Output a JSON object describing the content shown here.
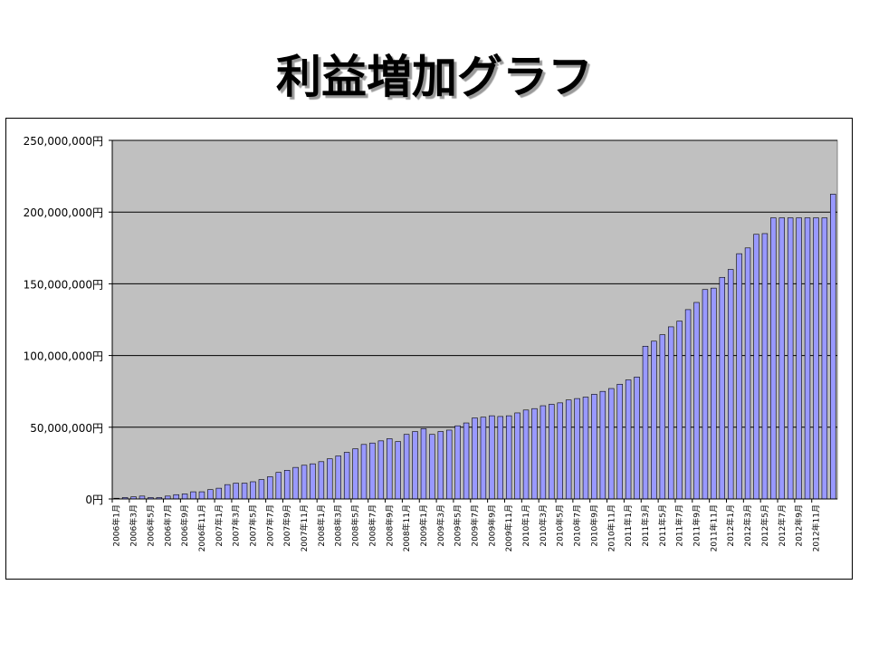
{
  "slide": {
    "title": "利益増加グラフ"
  },
  "colors": {
    "plot_background": "#c0c0c0",
    "bar_fill": "#9999ff",
    "bar_stroke": "#000000",
    "gridline": "#000000"
  },
  "chart_data": {
    "type": "bar",
    "title": "",
    "xlabel": "",
    "ylabel": "",
    "ylim": [
      0,
      250000000
    ],
    "y_ticks": [
      "0円",
      "50,000,000円",
      "100,000,000円",
      "150,000,000円",
      "200,000,000円",
      "250,000,000円"
    ],
    "grid": true,
    "legend": "none",
    "x_tick_labels": [
      "2006年1月",
      "2006年3月",
      "2006年5月",
      "2006年7月",
      "2006年9月",
      "2006年11月",
      "2007年1月",
      "2007年3月",
      "2007年5月",
      "2007年7月",
      "2007年9月",
      "2007年11月",
      "2008年1月",
      "2008年3月",
      "2008年5月",
      "2008年7月",
      "2008年9月",
      "2008年11月",
      "2009年1月",
      "2009年3月",
      "2009年5月",
      "2009年7月",
      "2009年9月",
      "2009年11月",
      "2010年1月",
      "2010年3月",
      "2010年5月",
      "2010年7月",
      "2010年9月",
      "2010年11月",
      "2011年1月",
      "2011年3月",
      "2011年5月",
      "2011年7月",
      "2011年9月",
      "2011年11月",
      "2012年1月",
      "2012年3月",
      "2012年5月",
      "2012年7月",
      "2012年9月",
      "2012年11月"
    ],
    "values": [
      500000,
      1000000,
      1500000,
      2000000,
      1000000,
      1000000,
      2000000,
      3000000,
      3500000,
      5000000,
      5000000,
      6500000,
      7500000,
      10000000,
      11000000,
      11000000,
      12000000,
      13500000,
      15500000,
      18500000,
      20000000,
      22000000,
      23500000,
      24500000,
      26000000,
      28000000,
      30000000,
      32500000,
      35000000,
      38000000,
      39000000,
      40500000,
      42000000,
      40000000,
      45000000,
      47000000,
      49000000,
      45000000,
      47000000,
      48000000,
      51000000,
      53000000,
      56500000,
      57000000,
      58000000,
      57500000,
      58000000,
      60000000,
      62000000,
      63000000,
      65000000,
      66000000,
      67000000,
      69000000,
      70000000,
      71000000,
      73000000,
      75000000,
      77000000,
      80000000,
      83000000,
      85000000,
      106500000,
      110000000,
      114500000,
      120000000,
      124000000,
      132000000,
      137000000,
      146000000,
      147000000,
      154500000,
      160000000,
      171000000,
      175000000,
      184500000,
      185000000,
      196000000,
      196000000,
      196000000,
      196000000,
      196000000,
      196000000,
      196000000,
      212500000
    ]
  }
}
